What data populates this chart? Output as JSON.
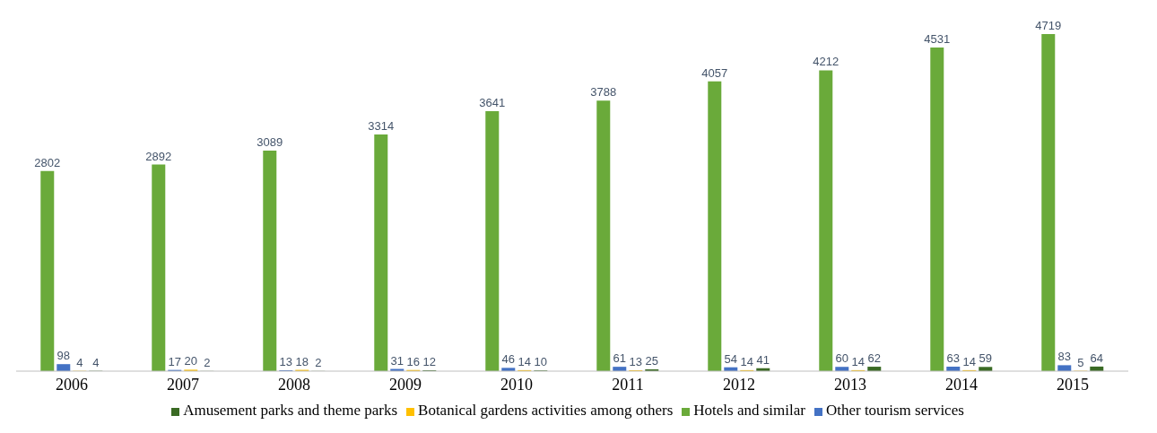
{
  "chart_data": {
    "type": "bar",
    "categories": [
      "2006",
      "2007",
      "2008",
      "2009",
      "2010",
      "2011",
      "2012",
      "2013",
      "2014",
      "2015"
    ],
    "series": [
      {
        "name": "Hotels and similar",
        "color": "#6aaa3a",
        "values": [
          2802,
          2892,
          3089,
          3314,
          3641,
          3788,
          4057,
          4212,
          4531,
          4719
        ]
      },
      {
        "name": "Other tourism services",
        "color": "#4472c4",
        "values": [
          98,
          17,
          13,
          31,
          46,
          61,
          54,
          60,
          63,
          83
        ]
      },
      {
        "name": "Botanical gardens activities among others",
        "color": "#ffc000",
        "values": [
          4,
          20,
          18,
          16,
          14,
          13,
          14,
          14,
          14,
          5
        ]
      },
      {
        "name": "Amusement parks and theme parks",
        "color": "#3a6a24",
        "values": [
          4,
          2,
          2,
          12,
          10,
          25,
          41,
          62,
          59,
          64
        ]
      }
    ],
    "data_labels": true,
    "legend": "bottom",
    "grid": false
  }
}
